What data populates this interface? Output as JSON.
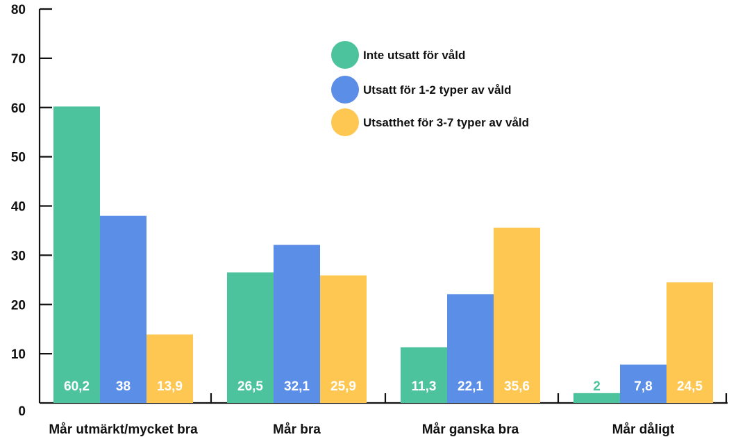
{
  "chart_data": {
    "type": "bar",
    "categories": [
      "Mår utmärkt/mycket bra",
      "Mår bra",
      "Mår ganska bra",
      "Mår dåligt"
    ],
    "series": [
      {
        "name": "Inte utsatt för våld",
        "color": "#4cc39c",
        "values": [
          60.2,
          26.5,
          11.3,
          2
        ]
      },
      {
        "name": "Utsatt för 1-2 typer av våld",
        "color": "#5b8ee6",
        "values": [
          38,
          32.1,
          22.1,
          7.8
        ]
      },
      {
        "name": "Utsatthet för 3-7 typer av våld",
        "color": "#fec751",
        "values": [
          13.9,
          25.9,
          35.6,
          24.5
        ]
      }
    ],
    "value_labels": [
      [
        "60,2",
        "26,5",
        "11,3",
        "2"
      ],
      [
        "38",
        "32,1",
        "22,1",
        "7,8"
      ],
      [
        "13,9",
        "25,9",
        "35,6",
        "24,5"
      ]
    ],
    "y_ticks": [
      "0",
      "10",
      "20",
      "30",
      "40",
      "50",
      "60",
      "70",
      "80"
    ],
    "ylim": [
      0,
      80
    ],
    "grid": false,
    "legend_position": "top-center",
    "value_label_color": "#ffffff"
  }
}
